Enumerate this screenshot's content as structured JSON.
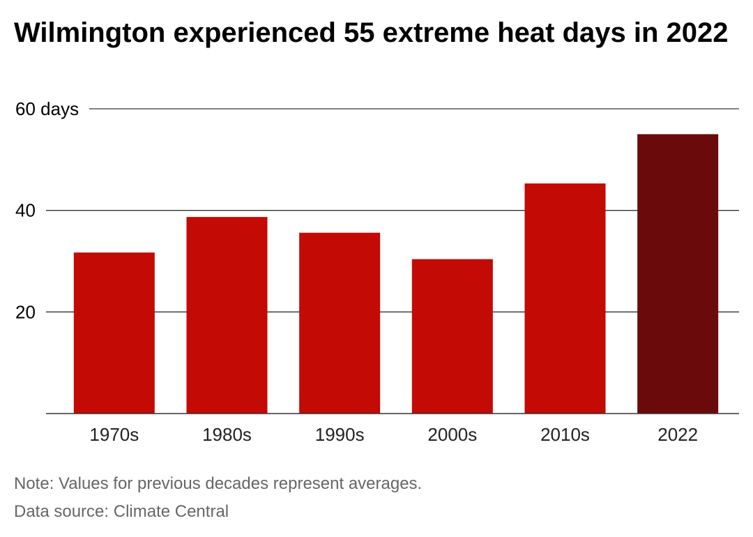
{
  "chart_data": {
    "type": "bar",
    "title": "Wilmington experienced 55 extreme heat days in 2022",
    "categories": [
      "1970s",
      "1980s",
      "1990s",
      "2000s",
      "2010s",
      "2022"
    ],
    "values": [
      31.7,
      38.7,
      35.6,
      30.4,
      45.3,
      55.0
    ],
    "y_ticks": [
      {
        "value": 20,
        "label": "20"
      },
      {
        "value": 40,
        "label": "40"
      },
      {
        "value": 60,
        "label": "60 days"
      }
    ],
    "ylim": [
      0,
      60
    ],
    "grid": true,
    "colors": {
      "decade_bar": "#c30a05",
      "highlight_bar": "#6b0a0a",
      "gridline": "#333333"
    },
    "highlight_category": "2022"
  },
  "footer": {
    "note": "Note: Values for previous decades represent averages.",
    "source": "Data source: Climate Central"
  }
}
